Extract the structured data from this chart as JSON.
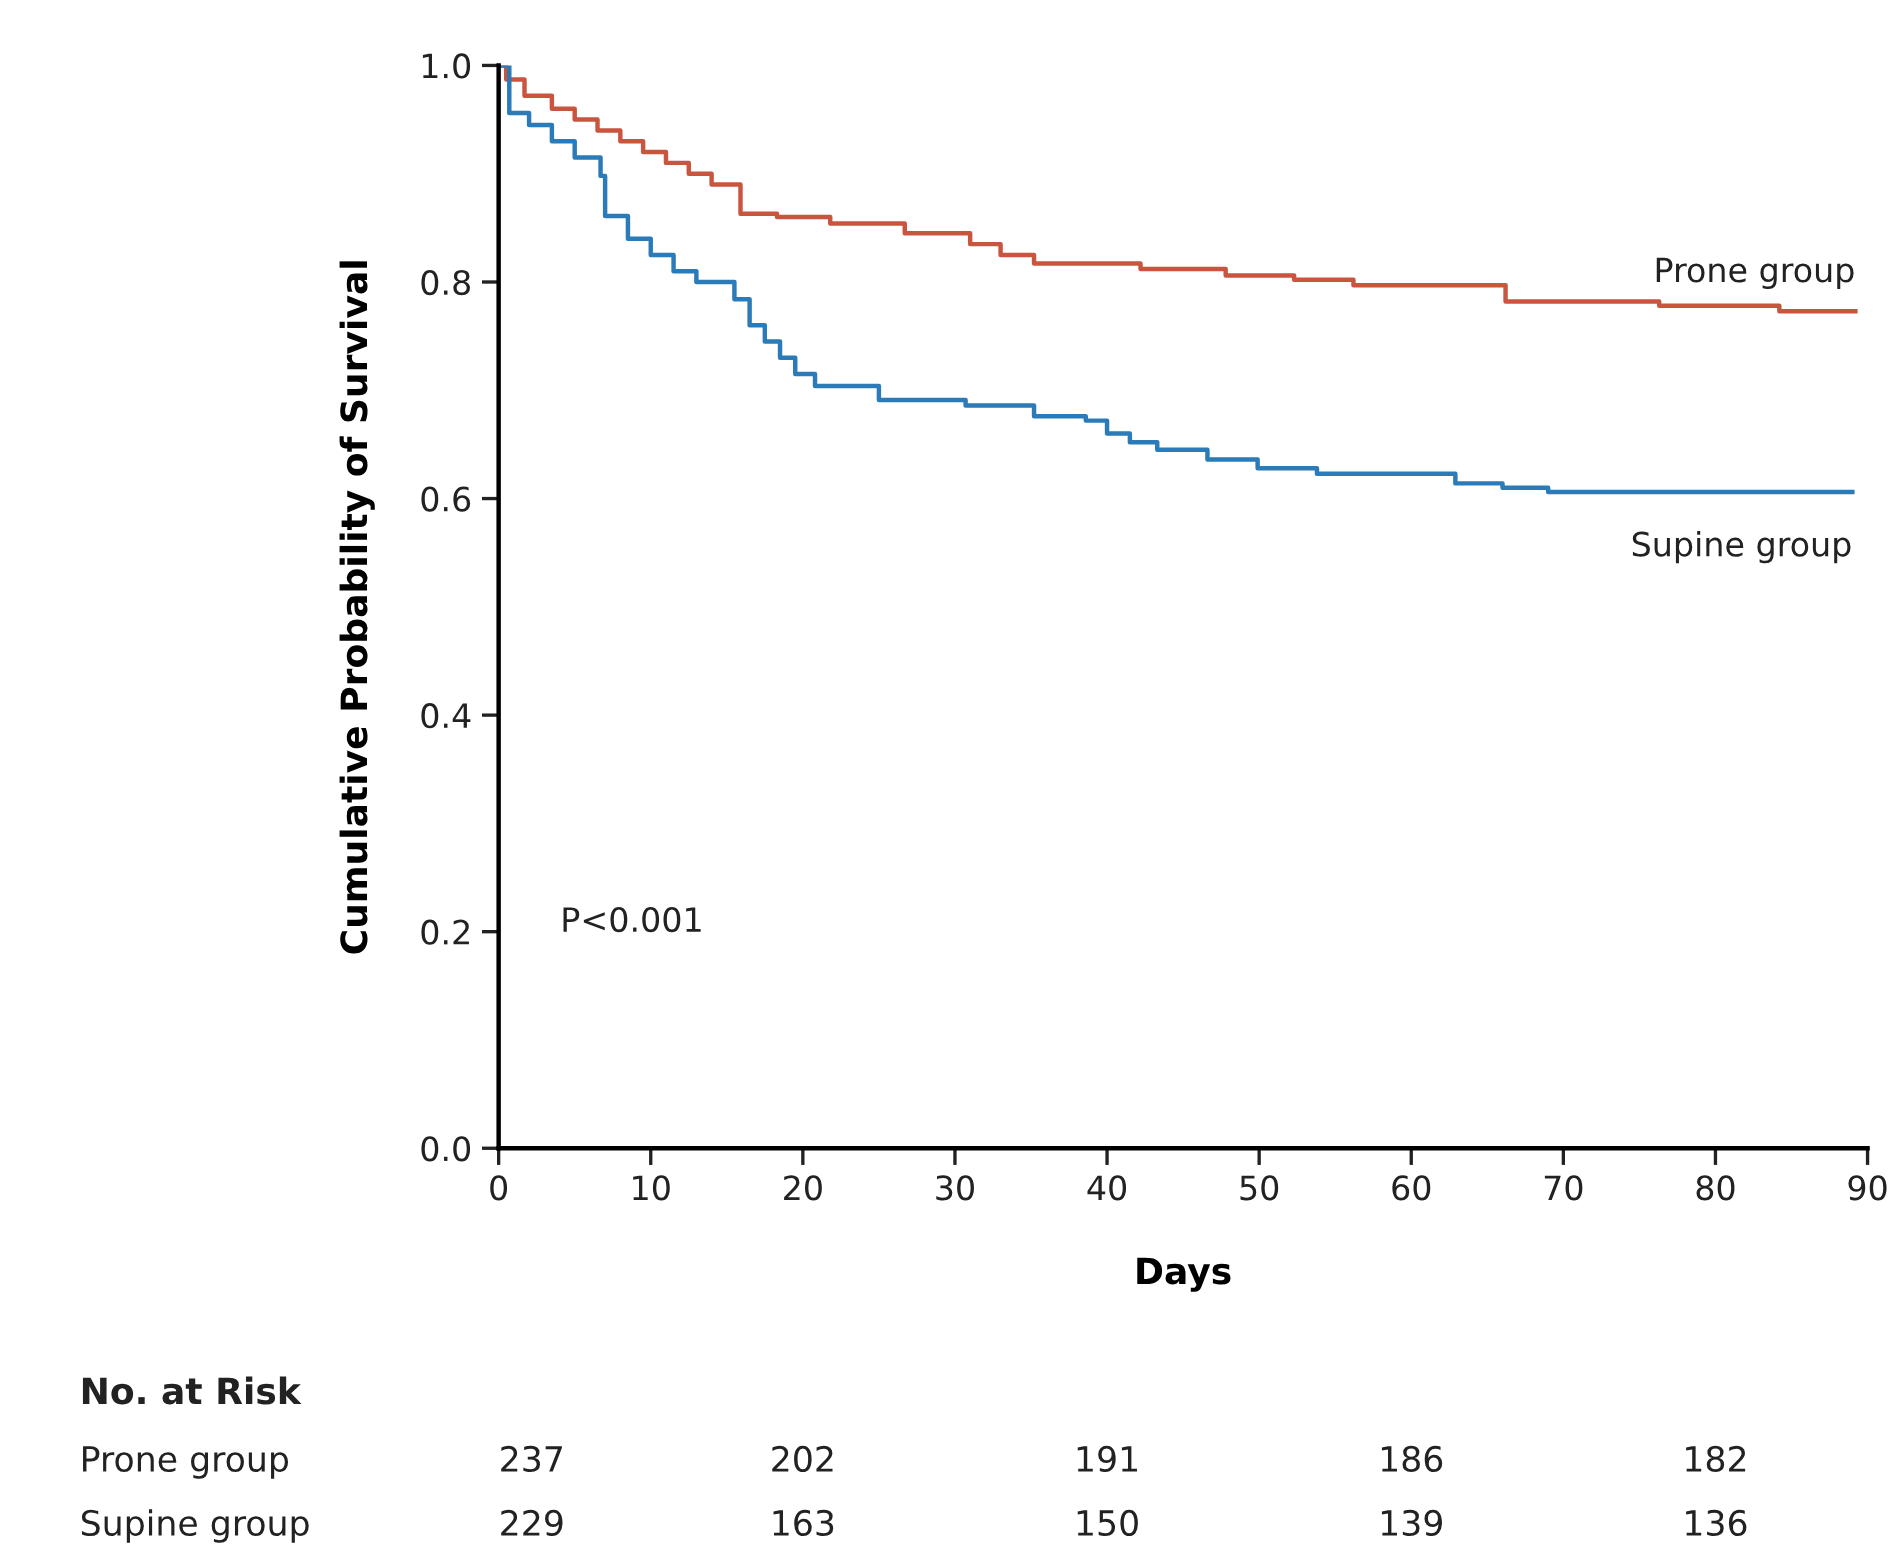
{
  "chart_data": {
    "type": "step",
    "xlabel": "Days",
    "ylabel": "Cumulative Probability of Survival",
    "xlim": [
      0,
      90
    ],
    "ylim": [
      0,
      1.0
    ],
    "xticks": [
      0,
      10,
      20,
      30,
      40,
      50,
      60,
      70,
      80,
      90
    ],
    "yticks": [
      {
        "value": 0,
        "label": "0.0"
      },
      {
        "value": 0.2,
        "label": "0.2"
      },
      {
        "value": 0.4,
        "label": "0.4"
      },
      {
        "value": 0.6,
        "label": "0.6"
      },
      {
        "value": 0.8,
        "label": "0.8"
      },
      {
        "value": 1.0,
        "label": "1.0"
      }
    ],
    "grid": false,
    "legend": false,
    "marker": "none",
    "line_style": "solid",
    "series": [
      {
        "name": "Prone group",
        "color": "#c9553f",
        "x": [
          0,
          0.5,
          1.7,
          3.5,
          5,
          6.5,
          8,
          9.5,
          11,
          12.5,
          14,
          15.9,
          18.3,
          21.8,
          26.7,
          31,
          33,
          35.2,
          42.2,
          47.8,
          52.3,
          56.2,
          66.2,
          76.3,
          84.2,
          89.2
        ],
        "values": [
          1.0,
          0.987,
          0.972,
          0.96,
          0.95,
          0.94,
          0.93,
          0.92,
          0.91,
          0.9,
          0.89,
          0.863,
          0.86,
          0.854,
          0.845,
          0.835,
          0.825,
          0.817,
          0.812,
          0.806,
          0.802,
          0.797,
          0.782,
          0.778,
          0.773,
          0.773
        ]
      },
      {
        "name": "Supine group",
        "color": "#2b7bb9",
        "x": [
          0,
          0.7,
          2,
          3.5,
          5,
          6.7,
          7,
          8.5,
          10,
          11.5,
          13,
          15.5,
          16.5,
          17.5,
          18.5,
          19.5,
          20.8,
          25,
          30.7,
          35.2,
          38.6,
          40,
          41.5,
          43.3,
          46.6,
          49.9,
          53.8,
          62.9,
          66,
          69,
          89
        ],
        "values": [
          1.0,
          0.956,
          0.945,
          0.93,
          0.915,
          0.898,
          0.861,
          0.84,
          0.825,
          0.81,
          0.8,
          0.784,
          0.76,
          0.745,
          0.73,
          0.715,
          0.704,
          0.691,
          0.686,
          0.676,
          0.672,
          0.66,
          0.652,
          0.645,
          0.636,
          0.628,
          0.623,
          0.614,
          0.61,
          0.606,
          0.606
        ]
      }
    ],
    "annotations": [
      "P<0.001",
      "No. at Risk",
      "Prone group",
      "237",
      "202",
      "191",
      "186",
      "182",
      "Supine group",
      "229",
      "163",
      "150",
      "139",
      "136"
    ]
  }
}
